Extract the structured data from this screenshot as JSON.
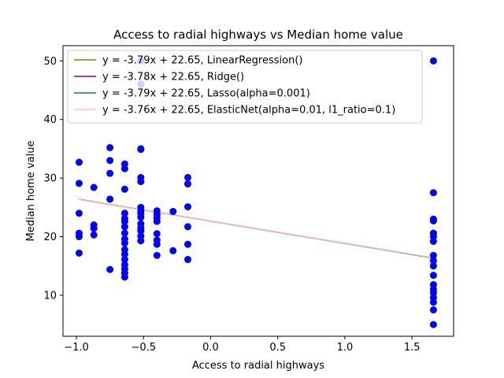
{
  "chart_data": {
    "type": "scatter",
    "title": "Access to radial highways vs Median home value",
    "xlabel": "Access to radial highways",
    "ylabel": "Median home value",
    "xlim": [
      -1.1,
      1.81
    ],
    "ylim": [
      3.0,
      52.6
    ],
    "xticks": [
      -1.0,
      -0.5,
      0.0,
      0.5,
      1.0,
      1.5
    ],
    "xtick_labels": [
      "−1.0",
      "−0.5",
      "0.0",
      "0.5",
      "1.0",
      "1.5"
    ],
    "yticks": [
      10,
      20,
      30,
      40,
      50
    ],
    "ytick_labels": [
      "10",
      "20",
      "30",
      "40",
      "50"
    ],
    "legend_position": "top-left",
    "grid": false,
    "points_color": "#0000ff",
    "points": [
      {
        "x": -0.98,
        "y": 32.7
      },
      {
        "x": -0.98,
        "y": 29.1
      },
      {
        "x": -0.98,
        "y": 24.0
      },
      {
        "x": -0.98,
        "y": 20.6
      },
      {
        "x": -0.98,
        "y": 20.0
      },
      {
        "x": -0.98,
        "y": 17.2
      },
      {
        "x": -0.87,
        "y": 28.4
      },
      {
        "x": -0.87,
        "y": 22.0
      },
      {
        "x": -0.87,
        "y": 21.4
      },
      {
        "x": -0.87,
        "y": 20.3
      },
      {
        "x": -0.75,
        "y": 35.2
      },
      {
        "x": -0.75,
        "y": 33.0
      },
      {
        "x": -0.75,
        "y": 30.8
      },
      {
        "x": -0.75,
        "y": 26.4
      },
      {
        "x": -0.75,
        "y": 14.4
      },
      {
        "x": -0.64,
        "y": 32.4
      },
      {
        "x": -0.64,
        "y": 31.6
      },
      {
        "x": -0.64,
        "y": 28.1
      },
      {
        "x": -0.64,
        "y": 24.0
      },
      {
        "x": -0.64,
        "y": 23.1
      },
      {
        "x": -0.64,
        "y": 22.6
      },
      {
        "x": -0.64,
        "y": 21.7
      },
      {
        "x": -0.64,
        "y": 20.6
      },
      {
        "x": -0.64,
        "y": 19.6
      },
      {
        "x": -0.64,
        "y": 18.9
      },
      {
        "x": -0.64,
        "y": 17.8
      },
      {
        "x": -0.64,
        "y": 17.0
      },
      {
        "x": -0.64,
        "y": 16.1
      },
      {
        "x": -0.64,
        "y": 15.2
      },
      {
        "x": -0.64,
        "y": 14.5
      },
      {
        "x": -0.64,
        "y": 13.8
      },
      {
        "x": -0.64,
        "y": 13.1
      },
      {
        "x": -0.52,
        "y": 50.0
      },
      {
        "x": -0.52,
        "y": 46.0
      },
      {
        "x": -0.52,
        "y": 35.0
      },
      {
        "x": -0.52,
        "y": 34.9
      },
      {
        "x": -0.52,
        "y": 30.1
      },
      {
        "x": -0.52,
        "y": 29.4
      },
      {
        "x": -0.52,
        "y": 25.0
      },
      {
        "x": -0.52,
        "y": 24.4
      },
      {
        "x": -0.52,
        "y": 23.9
      },
      {
        "x": -0.52,
        "y": 23.3
      },
      {
        "x": -0.52,
        "y": 22.2
      },
      {
        "x": -0.52,
        "y": 21.5
      },
      {
        "x": -0.52,
        "y": 21.0
      },
      {
        "x": -0.52,
        "y": 20.1
      },
      {
        "x": -0.52,
        "y": 19.3
      },
      {
        "x": -0.4,
        "y": 24.4
      },
      {
        "x": -0.4,
        "y": 23.8
      },
      {
        "x": -0.4,
        "y": 23.2
      },
      {
        "x": -0.4,
        "y": 22.6
      },
      {
        "x": -0.4,
        "y": 20.5
      },
      {
        "x": -0.4,
        "y": 19.4
      },
      {
        "x": -0.4,
        "y": 18.7
      },
      {
        "x": -0.4,
        "y": 16.8
      },
      {
        "x": -0.28,
        "y": 24.3
      },
      {
        "x": -0.28,
        "y": 17.6
      },
      {
        "x": -0.17,
        "y": 30.1
      },
      {
        "x": -0.17,
        "y": 29.0
      },
      {
        "x": -0.17,
        "y": 25.1
      },
      {
        "x": -0.17,
        "y": 21.7
      },
      {
        "x": -0.17,
        "y": 18.7
      },
      {
        "x": -0.17,
        "y": 16.1
      },
      {
        "x": 1.66,
        "y": 50.0
      },
      {
        "x": 1.66,
        "y": 27.5
      },
      {
        "x": 1.66,
        "y": 23.0
      },
      {
        "x": 1.66,
        "y": 22.7
      },
      {
        "x": 1.66,
        "y": 20.6
      },
      {
        "x": 1.66,
        "y": 20.0
      },
      {
        "x": 1.66,
        "y": 19.2
      },
      {
        "x": 1.66,
        "y": 16.8
      },
      {
        "x": 1.66,
        "y": 15.9
      },
      {
        "x": 1.66,
        "y": 15.0
      },
      {
        "x": 1.66,
        "y": 13.4
      },
      {
        "x": 1.66,
        "y": 11.8
      },
      {
        "x": 1.66,
        "y": 11.0
      },
      {
        "x": 1.66,
        "y": 10.4
      },
      {
        "x": 1.66,
        "y": 9.6
      },
      {
        "x": 1.66,
        "y": 8.8
      },
      {
        "x": 1.66,
        "y": 7.5
      },
      {
        "x": 1.66,
        "y": 5.0
      }
    ],
    "series": [
      {
        "name": "y = -3.79x + 22.65, LinearRegression()",
        "slope": -3.79,
        "intercept": 22.65,
        "color": "#808000",
        "dash": "solid",
        "x_range": [
          -0.98,
          1.66
        ]
      },
      {
        "name": "y = -3.78x + 22.65, Ridge()",
        "slope": -3.78,
        "intercept": 22.65,
        "color": "#800080",
        "dash": "solid",
        "x_range": [
          -0.98,
          1.66
        ]
      },
      {
        "name": "y = -3.79x + 22.65, Lasso(alpha=0.001)",
        "slope": -3.79,
        "intercept": 22.65,
        "color": "#008080",
        "dash": "solid",
        "x_range": [
          -0.98,
          1.66
        ]
      },
      {
        "name": "y = -3.76x + 22.65, ElasticNet(alpha=0.01, l1_ratio=0.1)",
        "slope": -3.76,
        "intercept": 22.65,
        "color": "#ffc0cb",
        "dash": "solid",
        "x_range": [
          -0.98,
          1.66
        ]
      }
    ]
  }
}
